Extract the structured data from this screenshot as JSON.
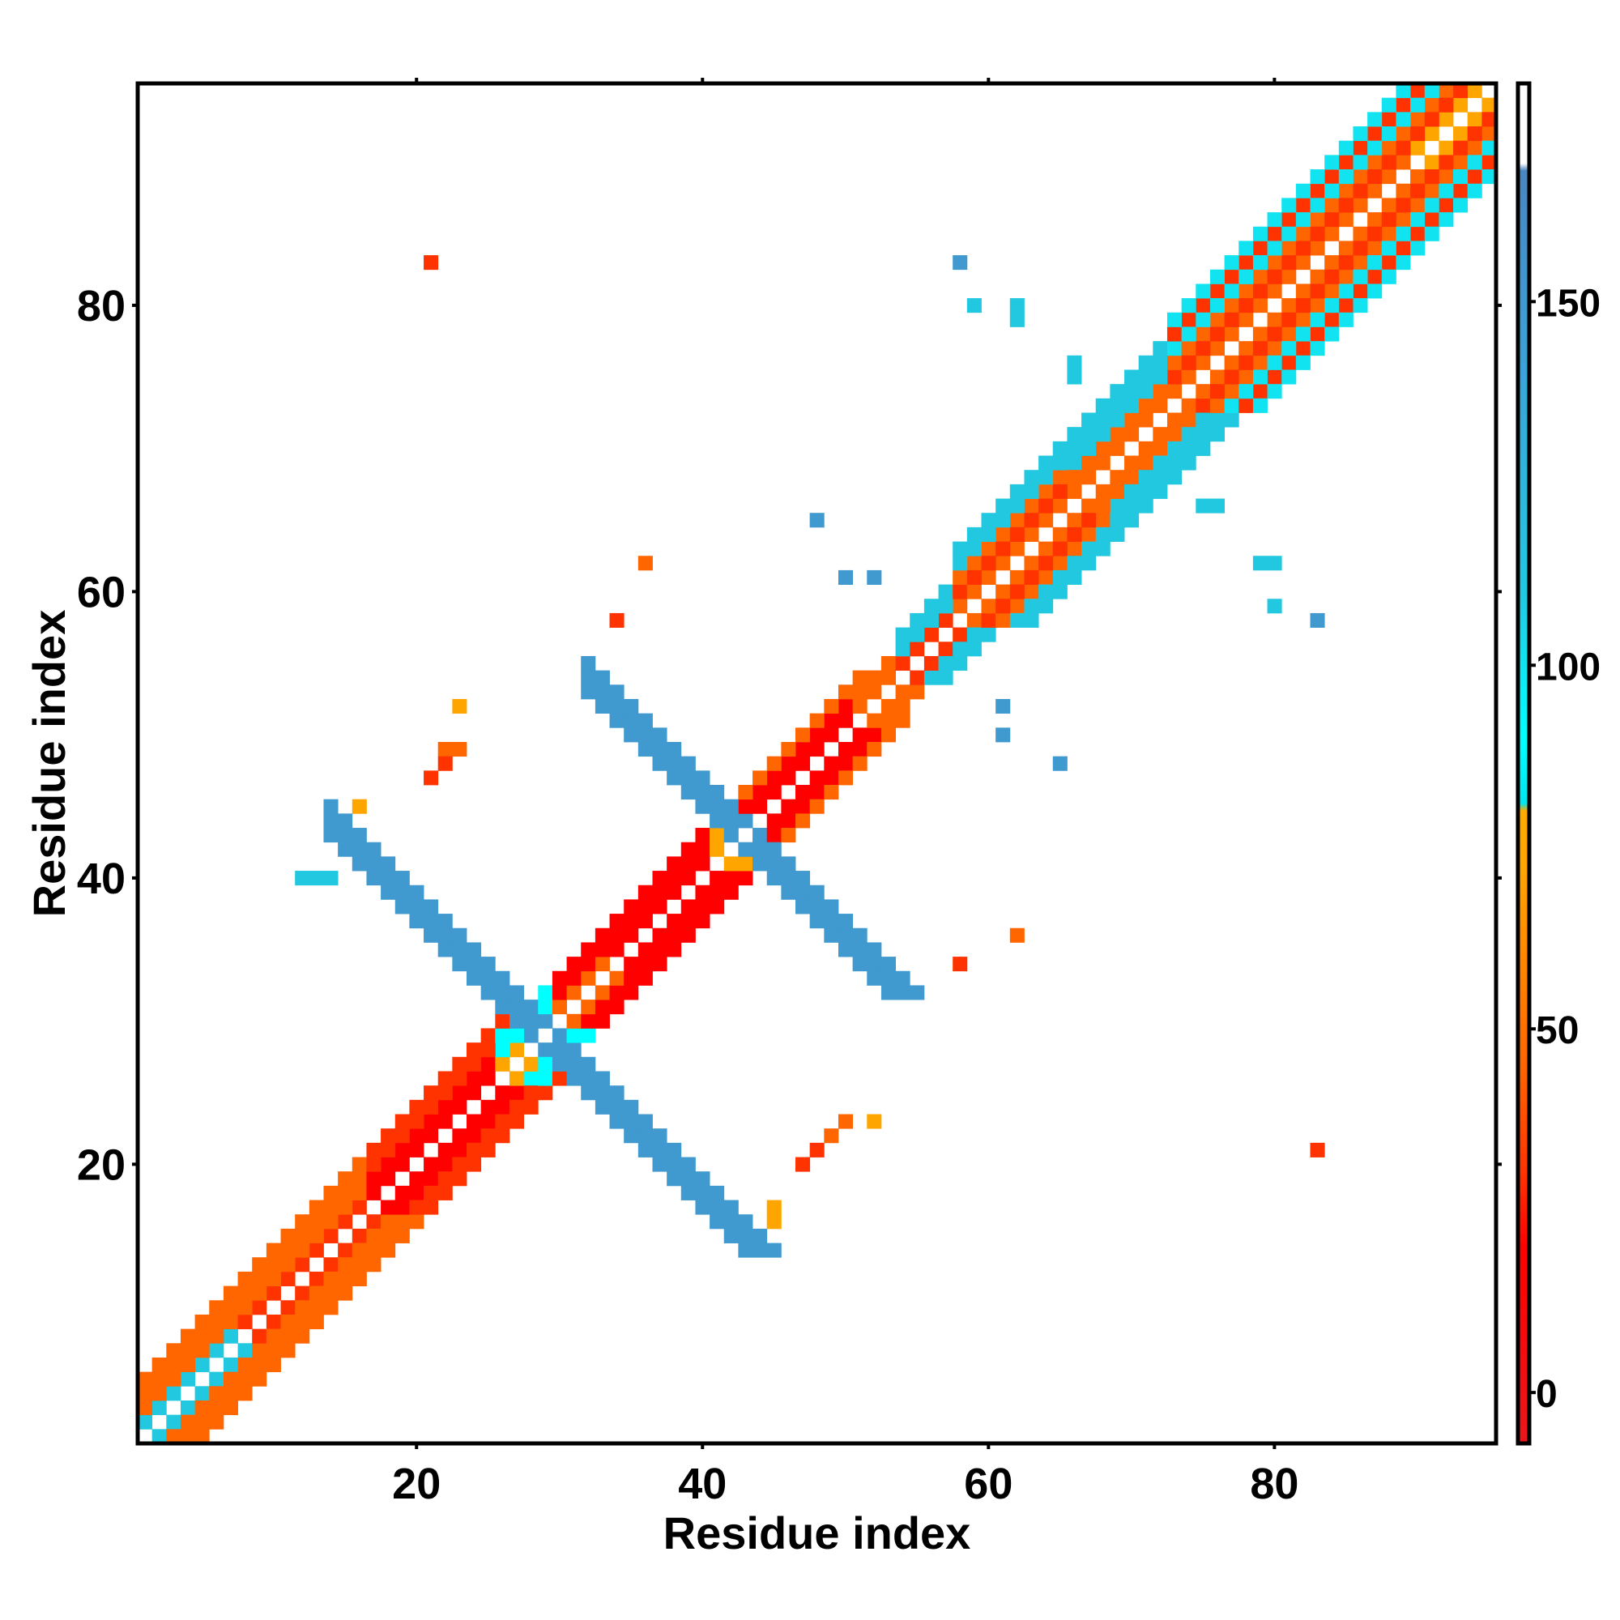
{
  "chart_data": {
    "type": "heatmap",
    "title": "",
    "xlabel": "Residue index",
    "ylabel": "Residue index",
    "xlim": [
      0.5,
      95.5
    ],
    "ylim": [
      0.5,
      95.5
    ],
    "x_ticks": [
      20,
      40,
      60,
      80
    ],
    "y_ticks": [
      20,
      40,
      60,
      80
    ],
    "colorbar": {
      "ticks": [
        0,
        50,
        100,
        150
      ],
      "range": [
        -7,
        180
      ],
      "stops": [
        {
          "value": -7,
          "color": "#e8171c"
        },
        {
          "value": 20,
          "color": "#ff0000"
        },
        {
          "value": 30,
          "color": "#ff3300"
        },
        {
          "value": 45,
          "color": "#ff6600"
        },
        {
          "value": 60,
          "color": "#ff8800"
        },
        {
          "value": 72,
          "color": "#ffa500"
        },
        {
          "value": 80,
          "color": "#ffaa00"
        },
        {
          "value": 81,
          "color": "#00e5ee"
        },
        {
          "value": 90,
          "color": "#00ffff"
        },
        {
          "value": 110,
          "color": "#22c8e0"
        },
        {
          "value": 140,
          "color": "#3aa4d8"
        },
        {
          "value": 168,
          "color": "#4a86c0"
        },
        {
          "value": 169,
          "color": "#ffffff"
        },
        {
          "value": 180,
          "color": "#ffffff"
        }
      ]
    },
    "grid": false,
    "legend": "colorbar right",
    "contacts": {
      "diagonal_bands": [
        {
          "from": 1,
          "to": 7,
          "offsets": [
            1
          ],
          "value": 110
        },
        {
          "from": 1,
          "to": 7,
          "offsets": [
            2,
            3,
            4
          ],
          "value": 45
        },
        {
          "from": 8,
          "to": 16,
          "offsets": [
            1
          ],
          "value": 30
        },
        {
          "from": 8,
          "to": 16,
          "offsets": [
            2,
            3,
            4
          ],
          "value": 45
        },
        {
          "from": 17,
          "to": 26,
          "offsets": [
            1,
            2
          ],
          "value": 20
        },
        {
          "from": 17,
          "to": 26,
          "offsets": [
            3,
            4
          ],
          "value": 30
        },
        {
          "from": 26,
          "to": 29,
          "offsets": [
            1
          ],
          "value": 72
        },
        {
          "from": 26,
          "to": 29,
          "offsets": [
            2,
            3
          ],
          "value": 90
        },
        {
          "from": 30,
          "to": 41,
          "offsets": [
            1,
            2,
            3
          ],
          "value": 20
        },
        {
          "from": 30,
          "to": 33,
          "offsets": [
            1
          ],
          "value": 45
        },
        {
          "from": 41,
          "to": 43,
          "offsets": [
            1,
            2
          ],
          "value": 72
        },
        {
          "from": 43,
          "to": 51,
          "offsets": [
            1,
            2
          ],
          "value": 20
        },
        {
          "from": 43,
          "to": 51,
          "offsets": [
            3
          ],
          "value": 45
        },
        {
          "from": 51,
          "to": 54,
          "offsets": [
            1,
            2
          ],
          "value": 45
        },
        {
          "from": 54,
          "to": 58,
          "offsets": [
            1
          ],
          "value": 30
        },
        {
          "from": 54,
          "to": 58,
          "offsets": [
            2,
            3
          ],
          "value": 110
        },
        {
          "from": 58,
          "to": 66,
          "offsets": [
            1,
            3
          ],
          "value": 45
        },
        {
          "from": 58,
          "to": 66,
          "offsets": [
            2
          ],
          "value": 30
        },
        {
          "from": 58,
          "to": 66,
          "offsets": [
            4,
            5
          ],
          "value": 110
        },
        {
          "from": 66,
          "to": 73,
          "offsets": [
            1,
            2
          ],
          "value": 45
        },
        {
          "from": 66,
          "to": 73,
          "offsets": [
            3,
            4,
            5
          ],
          "value": 110
        },
        {
          "from": 73,
          "to": 94,
          "offsets": [
            1,
            3
          ],
          "value": 45
        },
        {
          "from": 73,
          "to": 94,
          "offsets": [
            2,
            5
          ],
          "value": 30
        },
        {
          "from": 73,
          "to": 94,
          "offsets": [
            4,
            6
          ],
          "value": 100
        },
        {
          "from": 90,
          "to": 94,
          "offsets": [
            1
          ],
          "value": 72
        }
      ],
      "antidiagonal_bands": [
        {
          "i_from": 14,
          "i_to": 27,
          "sum": 57,
          "width": 3,
          "value": 150
        },
        {
          "i_from": 27,
          "i_to": 40,
          "sum": 57,
          "width": 3,
          "value": 150
        },
        {
          "i_from": 32,
          "i_to": 43,
          "sum": 85,
          "width": 3,
          "value": 150
        },
        {
          "i_from": 43,
          "i_to": 53,
          "sum": 85,
          "width": 3,
          "value": 150
        }
      ],
      "points": [
        [
          21,
          83,
          30
        ],
        [
          16,
          45,
          72
        ],
        [
          23,
          52,
          72
        ],
        [
          22,
          49,
          45
        ],
        [
          23,
          49,
          45
        ],
        [
          21,
          47,
          30
        ],
        [
          22,
          48,
          30
        ],
        [
          45,
          16,
          72
        ],
        [
          45,
          17,
          72
        ],
        [
          47,
          20,
          30
        ],
        [
          48,
          21,
          30
        ],
        [
          49,
          22,
          45
        ],
        [
          50,
          23,
          45
        ],
        [
          52,
          23,
          72
        ],
        [
          36,
          62,
          45
        ],
        [
          34,
          58,
          30
        ],
        [
          48,
          65,
          150
        ],
        [
          50,
          61,
          150
        ],
        [
          52,
          61,
          150
        ],
        [
          58,
          83,
          150
        ],
        [
          59,
          80,
          110
        ],
        [
          62,
          80,
          110
        ],
        [
          62,
          79,
          110
        ],
        [
          66,
          76,
          110
        ],
        [
          66,
          75,
          110
        ],
        [
          61,
          52,
          150
        ],
        [
          61,
          50,
          150
        ],
        [
          65,
          48,
          150
        ],
        [
          62,
          36,
          45
        ],
        [
          58,
          34,
          30
        ],
        [
          75,
          66,
          110
        ],
        [
          76,
          66,
          110
        ],
        [
          79,
          62,
          110
        ],
        [
          80,
          62,
          110
        ],
        [
          80,
          59,
          110
        ],
        [
          83,
          58,
          150
        ],
        [
          83,
          21,
          30
        ],
        [
          14,
          40,
          110
        ],
        [
          13,
          40,
          110
        ],
        [
          12,
          40,
          110
        ]
      ]
    }
  }
}
